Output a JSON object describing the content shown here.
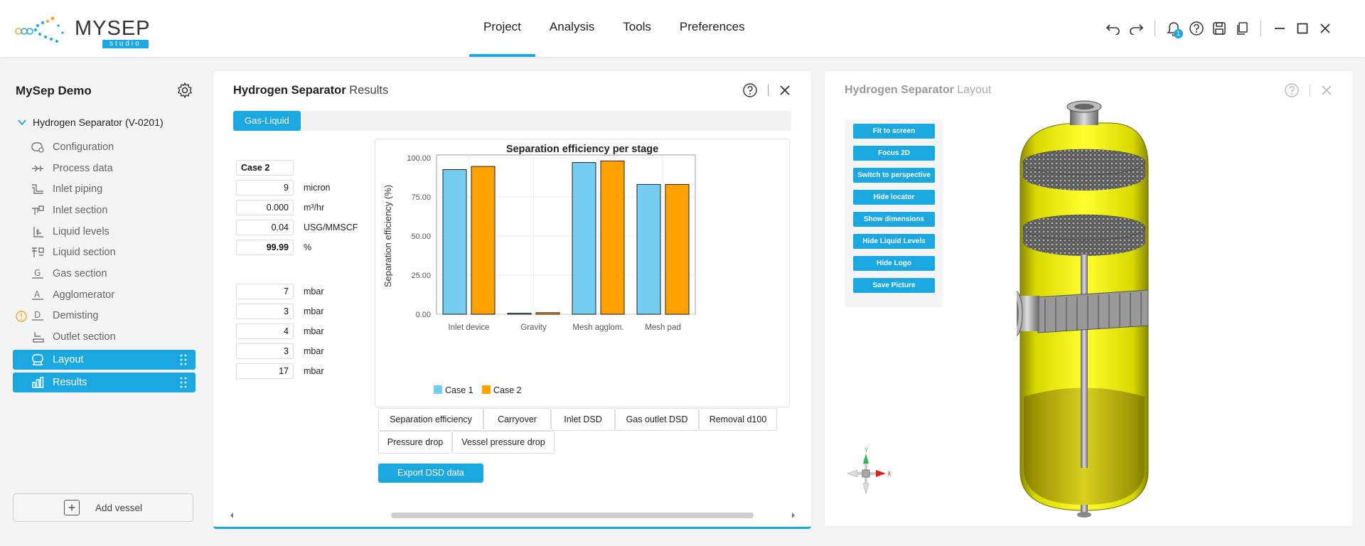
{
  "app": {
    "logo_text": "MYSEP",
    "logo_sub": "studio"
  },
  "nav": {
    "items": [
      {
        "label": "Project",
        "active": true
      },
      {
        "label": "Analysis",
        "active": false
      },
      {
        "label": "Tools",
        "active": false
      },
      {
        "label": "Preferences",
        "active": false
      }
    ]
  },
  "header_icons": {
    "notification_count": "1",
    "icons": [
      "undo-icon",
      "redo-icon",
      "bell-icon",
      "help-icon",
      "save-icon",
      "copy-icon",
      "minimize-icon",
      "maximize-icon",
      "close-icon"
    ]
  },
  "sidebar": {
    "project_title": "MySep Demo",
    "vessel_name": "Hydrogen Separator (V-0201)",
    "items": [
      {
        "label": "Configuration",
        "icon": "configuration-icon"
      },
      {
        "label": "Process data",
        "icon": "process-data-icon"
      },
      {
        "label": "Inlet piping",
        "icon": "inlet-piping-icon"
      },
      {
        "label": "Inlet section",
        "icon": "inlet-section-icon"
      },
      {
        "label": "Liquid levels",
        "icon": "liquid-levels-icon"
      },
      {
        "label": "Liquid section",
        "icon": "liquid-section-icon"
      },
      {
        "label": "Gas section",
        "icon": "gas-section-icon"
      },
      {
        "label": "Agglomerator",
        "icon": "agglomerator-icon"
      },
      {
        "label": "Demisting",
        "icon": "demisting-icon",
        "warning": true
      },
      {
        "label": "Outlet section",
        "icon": "outlet-section-icon"
      }
    ],
    "active_items": [
      {
        "label": "Layout",
        "icon": "layout-icon"
      },
      {
        "label": "Results",
        "icon": "results-icon"
      }
    ],
    "add_vessel_label": "Add vessel"
  },
  "results_panel": {
    "title_bold": "Hydrogen Separator",
    "title_rest": " Results",
    "tab": "Gas-Liquid",
    "case_label": "Case 2",
    "rows": [
      {
        "value": "9",
        "unit": "micron"
      },
      {
        "value": "0.000",
        "unit": "m³/hr"
      },
      {
        "value": "0.04",
        "unit": "USG/MMSCF"
      },
      {
        "value": "99.99",
        "unit": "%"
      },
      {
        "value": "7",
        "unit": "mbar"
      },
      {
        "value": "3",
        "unit": "mbar"
      },
      {
        "value": "4",
        "unit": "mbar"
      },
      {
        "value": "3",
        "unit": "mbar"
      },
      {
        "value": "17",
        "unit": "mbar"
      }
    ],
    "buttons_row1": [
      "Separation efficiency",
      "Carryover",
      "Inlet DSD",
      "Gas outlet DSD",
      "Removal d100"
    ],
    "buttons_row2": [
      "Pressure drop",
      "Vessel pressure drop"
    ],
    "export_label": "Export DSD data"
  },
  "chart_data": {
    "type": "bar",
    "title": "Separation efficiency per stage",
    "xlabel": "",
    "ylabel": "Separation efficiency (%)",
    "ylim": [
      0,
      100
    ],
    "yticks": [
      "0.00",
      "25.00",
      "50.00",
      "75.00",
      "100.00"
    ],
    "categories": [
      "Inlet device",
      "Gravity",
      "Mesh agglom.",
      "Mesh pad"
    ],
    "series": [
      {
        "name": "Case 1",
        "color": "#76cdf2",
        "values": [
          92.5,
          0,
          97,
          83
        ]
      },
      {
        "name": "Case 2",
        "color": "#ffa200",
        "values": [
          94.5,
          1,
          98,
          83
        ]
      }
    ],
    "legend": "bottom-center",
    "grid": true
  },
  "layout_panel": {
    "title_bold": "Hydrogen Separator",
    "title_rest": " Layout",
    "controls": [
      "Fit to screen",
      "Focus 2D",
      "Switch to perspective",
      "Hide locator",
      "Show dimensions",
      "Hide Liquid Levels",
      "Hide Logo",
      "Save Picture"
    ],
    "axis_labels": {
      "x": "X",
      "y": "Y"
    }
  }
}
